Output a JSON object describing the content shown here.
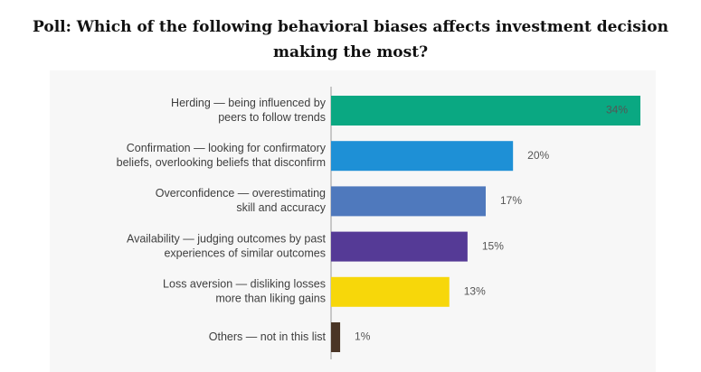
{
  "title": "Poll: Which of the following behavioral biases affects investment decision making the most?",
  "chart_data": {
    "type": "bar",
    "orientation": "horizontal",
    "title": "Poll: Which of the following behavioral biases affects investment decision making the most?",
    "xlabel": "",
    "ylabel": "",
    "grid": false,
    "legend": "none",
    "value_suffix": "%",
    "categories": [
      [
        "Herding — being influenced by",
        "peers to follow trends"
      ],
      [
        "Confirmation — looking for confirmatory",
        "beliefs, overlooking beliefs that disconfirm"
      ],
      [
        "Overconfidence — overestimating",
        "skill and accuracy"
      ],
      [
        "Availability — judging outcomes by past",
        "experiences of similar outcomes"
      ],
      [
        "Loss aversion — disliking losses",
        "more than liking gains"
      ],
      [
        "Others — not in this list"
      ]
    ],
    "values": [
      34,
      20,
      17,
      15,
      13,
      1
    ],
    "labels": [
      "34%",
      "20%",
      "17%",
      "15%",
      "13%",
      "1%"
    ],
    "colors": [
      "#0aa882",
      "#1e90d6",
      "#4f79bd",
      "#553a96",
      "#f7d70a",
      "#4a3526"
    ],
    "xlim": [
      0,
      34
    ]
  }
}
